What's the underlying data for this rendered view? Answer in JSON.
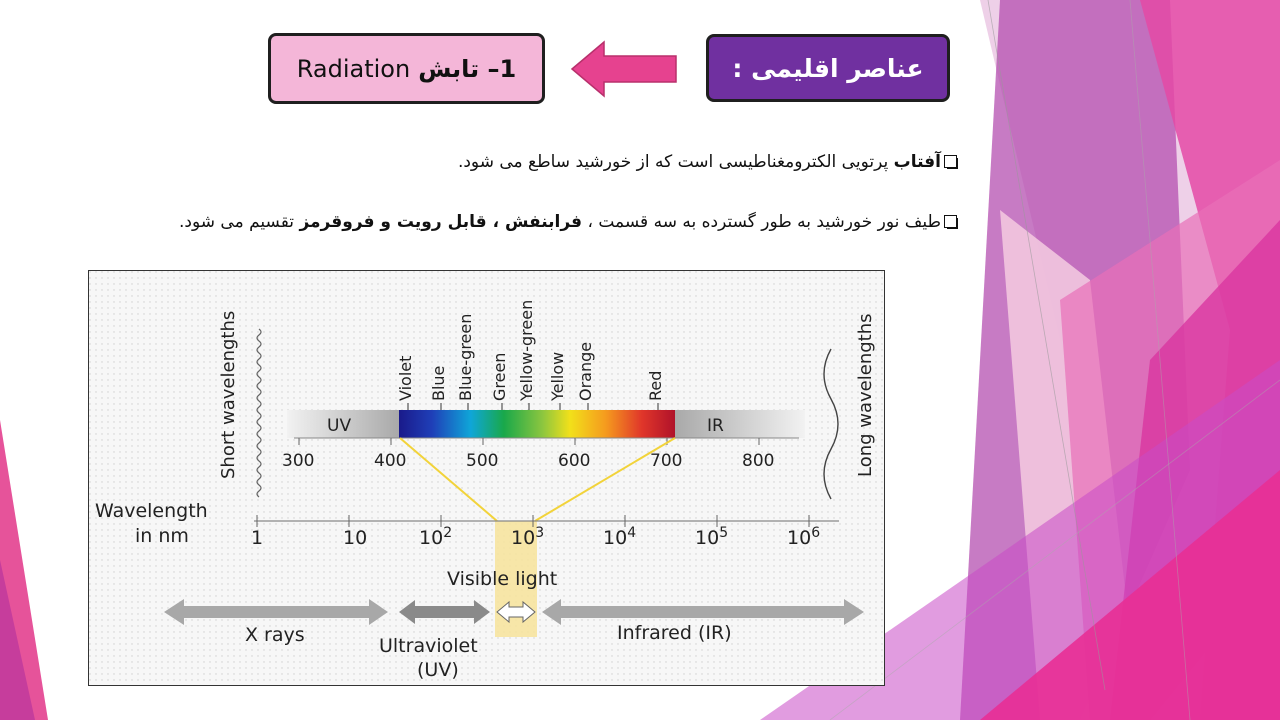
{
  "slide": {
    "title": "عناصر اقلیمی :",
    "topic": {
      "persian": "1– تابش",
      "english": "Radiation"
    },
    "bullets": [
      {
        "bold": "آفتاب",
        "text": " پرتویی الکترومغناطیسی است که از خورشید ساطع می شود."
      },
      {
        "text": "طیف نور خورشید به طور گسترده به سه قسمت ، ",
        "bold": "فرابنفش ، قابل رویت و فروقرمز",
        "tail": " تقسیم می شود."
      }
    ],
    "colors": {
      "title_bg": "#7030a0",
      "topic_bg": "#f4b6d8",
      "arrow": "#e6428f"
    }
  },
  "figure": {
    "short_label": "Short wavelengths",
    "long_label": "Long wavelengths",
    "band_uv": "UV",
    "band_ir": "IR",
    "colors": [
      "Violet",
      "Blue",
      "Blue-green",
      "Green",
      "Yellow-green",
      "Yellow",
      "Orange",
      "Red"
    ],
    "nm_ticks": [
      "300",
      "400",
      "500",
      "600",
      "700",
      "800"
    ],
    "axis_label_1": "Wavelength",
    "axis_label_2": "in nm",
    "log_ticks": [
      {
        "base": "1",
        "exp": ""
      },
      {
        "base": "10",
        "exp": ""
      },
      {
        "base": "10",
        "exp": "2"
      },
      {
        "base": "10",
        "exp": "3"
      },
      {
        "base": "10",
        "exp": "4"
      },
      {
        "base": "10",
        "exp": "5"
      },
      {
        "base": "10",
        "exp": "6"
      }
    ],
    "visible_light": "Visible light",
    "xrays": "X rays",
    "ultraviolet_1": "Ultraviolet",
    "ultraviolet_2": "(UV)",
    "infrared": "Infrared (IR)"
  }
}
